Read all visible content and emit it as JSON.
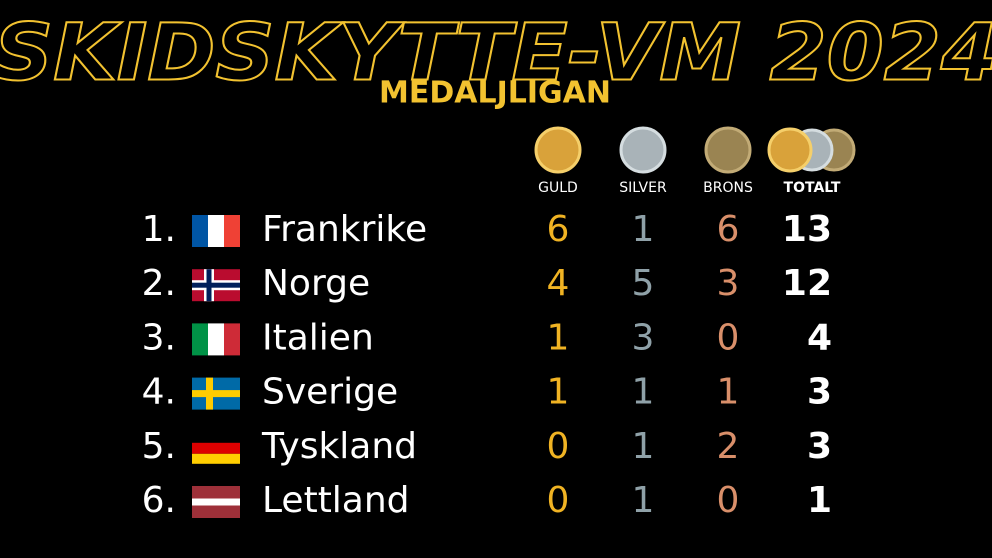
{
  "header": {
    "title": "SKIDSKYTTE-VM 2024",
    "subtitle": "MEDALJLIGAN"
  },
  "table": {
    "columns": [
      "GULD",
      "SILVER",
      "BRONS",
      "TOTALT"
    ],
    "rows": [
      {
        "rank": "1.",
        "country": "Frankrike",
        "gold": 6,
        "silver": 1,
        "bronze": 6,
        "total": 13
      },
      {
        "rank": "2.",
        "country": "Norge",
        "gold": 4,
        "silver": 5,
        "bronze": 3,
        "total": 12
      },
      {
        "rank": "3.",
        "country": "Italien",
        "gold": 1,
        "silver": 3,
        "bronze": 0,
        "total": 4
      },
      {
        "rank": "4.",
        "country": "Sverige",
        "gold": 1,
        "silver": 1,
        "bronze": 1,
        "total": 3
      },
      {
        "rank": "5.",
        "country": "Tyskland",
        "gold": 0,
        "silver": 1,
        "bronze": 2,
        "total": 3
      },
      {
        "rank": "6.",
        "country": "Lettland",
        "gold": 0,
        "silver": 1,
        "bronze": 0,
        "total": 1
      }
    ]
  }
}
